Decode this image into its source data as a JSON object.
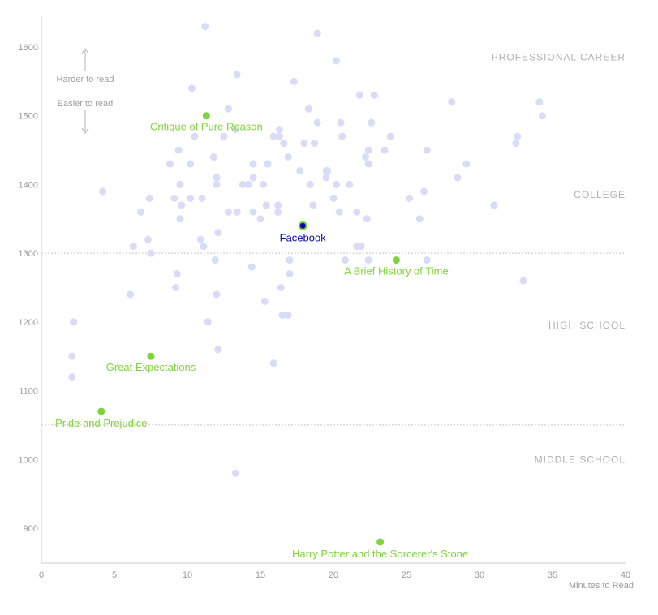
{
  "chart_data": {
    "type": "scatter",
    "xlabel": "Minutes to Read",
    "ylabel": "",
    "xlim": [
      0,
      40
    ],
    "ylim": [
      850,
      1660
    ],
    "x_ticks": [
      "0",
      "5",
      "10",
      "15",
      "20",
      "25",
      "30",
      "35",
      "40"
    ],
    "y_ticks": [
      "900",
      "1000",
      "1100",
      "1200",
      "1300",
      "1400",
      "1500",
      "1600"
    ],
    "grid": false,
    "thresholds": [
      1440,
      1300,
      1050
    ],
    "bands": [
      {
        "label": "PROFESSIONAL CAREER",
        "y": 1585
      },
      {
        "label": "COLLEGE",
        "y": 1385
      },
      {
        "label": "HIGH SCHOOL",
        "y": 1195
      },
      {
        "label": "MIDDLE SCHOOL",
        "y": 1000
      }
    ],
    "annotations": {
      "harder": "Harder to read",
      "easier": "Easier to read"
    },
    "colors": {
      "background_points": "#d9dcf6",
      "highlight": "#7ed43a",
      "facebook_fill": "#0a0aa0",
      "facebook_label": "#0a0aa0",
      "threshold_line": "#c8c8c8",
      "axis": "#cccccc"
    },
    "highlighted": [
      {
        "name": "Critique of Pure Reason",
        "x": 11.3,
        "y": 1500,
        "color": "#7ed43a"
      },
      {
        "name": "Facebook",
        "x": 17.9,
        "y": 1340,
        "color": "#0a0aa0"
      },
      {
        "name": "A Brief History of Time",
        "x": 24.3,
        "y": 1290,
        "color": "#7ed43a"
      },
      {
        "name": "Great Expectations",
        "x": 7.5,
        "y": 1150,
        "color": "#7ed43a"
      },
      {
        "name": "Pride and Prejudice",
        "x": 4.1,
        "y": 1070,
        "color": "#7ed43a"
      },
      {
        "name": "Harry Potter and the Sorcerer's Stone",
        "x": 23.2,
        "y": 880,
        "color": "#7ed43a"
      }
    ],
    "points": [
      [
        11.2,
        1630
      ],
      [
        18.9,
        1620
      ],
      [
        20.2,
        1580
      ],
      [
        13.4,
        1560
      ],
      [
        17.3,
        1550
      ],
      [
        10.3,
        1540
      ],
      [
        21.8,
        1530
      ],
      [
        22.8,
        1530
      ],
      [
        28.1,
        1520
      ],
      [
        34.1,
        1520
      ],
      [
        12.8,
        1510
      ],
      [
        18.3,
        1510
      ],
      [
        34.3,
        1500
      ],
      [
        18.9,
        1490
      ],
      [
        20.5,
        1490
      ],
      [
        22.6,
        1490
      ],
      [
        13.3,
        1480
      ],
      [
        16.3,
        1480
      ],
      [
        10.5,
        1470
      ],
      [
        12.5,
        1470
      ],
      [
        15.9,
        1470
      ],
      [
        16.3,
        1470
      ],
      [
        20.6,
        1470
      ],
      [
        23.9,
        1470
      ],
      [
        32.6,
        1470
      ],
      [
        16.6,
        1460
      ],
      [
        18.0,
        1460
      ],
      [
        18.7,
        1460
      ],
      [
        32.5,
        1460
      ],
      [
        9.4,
        1450
      ],
      [
        22.4,
        1450
      ],
      [
        23.5,
        1450
      ],
      [
        26.4,
        1450
      ],
      [
        11.8,
        1440
      ],
      [
        16.9,
        1440
      ],
      [
        22.2,
        1440
      ],
      [
        8.8,
        1430
      ],
      [
        10.2,
        1430
      ],
      [
        14.5,
        1430
      ],
      [
        15.5,
        1430
      ],
      [
        22.4,
        1430
      ],
      [
        29.1,
        1430
      ],
      [
        17.7,
        1420
      ],
      [
        19.5,
        1420
      ],
      [
        19.6,
        1420
      ],
      [
        12.0,
        1410
      ],
      [
        14.5,
        1410
      ],
      [
        19.5,
        1410
      ],
      [
        28.5,
        1410
      ],
      [
        9.5,
        1400
      ],
      [
        12.0,
        1400
      ],
      [
        13.8,
        1400
      ],
      [
        14.2,
        1400
      ],
      [
        15.2,
        1400
      ],
      [
        18.4,
        1400
      ],
      [
        20.2,
        1400
      ],
      [
        21.1,
        1400
      ],
      [
        4.2,
        1390
      ],
      [
        26.2,
        1390
      ],
      [
        7.4,
        1380
      ],
      [
        9.1,
        1380
      ],
      [
        10.2,
        1380
      ],
      [
        11.0,
        1380
      ],
      [
        20.0,
        1380
      ],
      [
        25.2,
        1380
      ],
      [
        9.6,
        1370
      ],
      [
        15.4,
        1370
      ],
      [
        16.2,
        1370
      ],
      [
        18.6,
        1370
      ],
      [
        31.0,
        1370
      ],
      [
        6.8,
        1360
      ],
      [
        12.8,
        1360
      ],
      [
        13.4,
        1360
      ],
      [
        14.5,
        1360
      ],
      [
        16.2,
        1360
      ],
      [
        20.4,
        1360
      ],
      [
        21.6,
        1360
      ],
      [
        9.5,
        1350
      ],
      [
        15.0,
        1350
      ],
      [
        22.3,
        1350
      ],
      [
        25.9,
        1350
      ],
      [
        12.1,
        1330
      ],
      [
        7.3,
        1320
      ],
      [
        10.9,
        1320
      ],
      [
        6.3,
        1310
      ],
      [
        11.1,
        1310
      ],
      [
        21.6,
        1310
      ],
      [
        21.9,
        1310
      ],
      [
        7.5,
        1300
      ],
      [
        11.9,
        1290
      ],
      [
        17.0,
        1290
      ],
      [
        20.8,
        1290
      ],
      [
        22.4,
        1290
      ],
      [
        26.4,
        1290
      ],
      [
        14.4,
        1280
      ],
      [
        9.3,
        1270
      ],
      [
        17.0,
        1270
      ],
      [
        33.0,
        1260
      ],
      [
        9.2,
        1250
      ],
      [
        16.4,
        1250
      ],
      [
        6.1,
        1240
      ],
      [
        12.0,
        1240
      ],
      [
        15.3,
        1230
      ],
      [
        16.5,
        1210
      ],
      [
        16.9,
        1210
      ],
      [
        2.2,
        1200
      ],
      [
        11.4,
        1200
      ],
      [
        12.1,
        1160
      ],
      [
        2.1,
        1150
      ],
      [
        15.9,
        1140
      ],
      [
        2.1,
        1120
      ],
      [
        13.3,
        980
      ]
    ]
  }
}
